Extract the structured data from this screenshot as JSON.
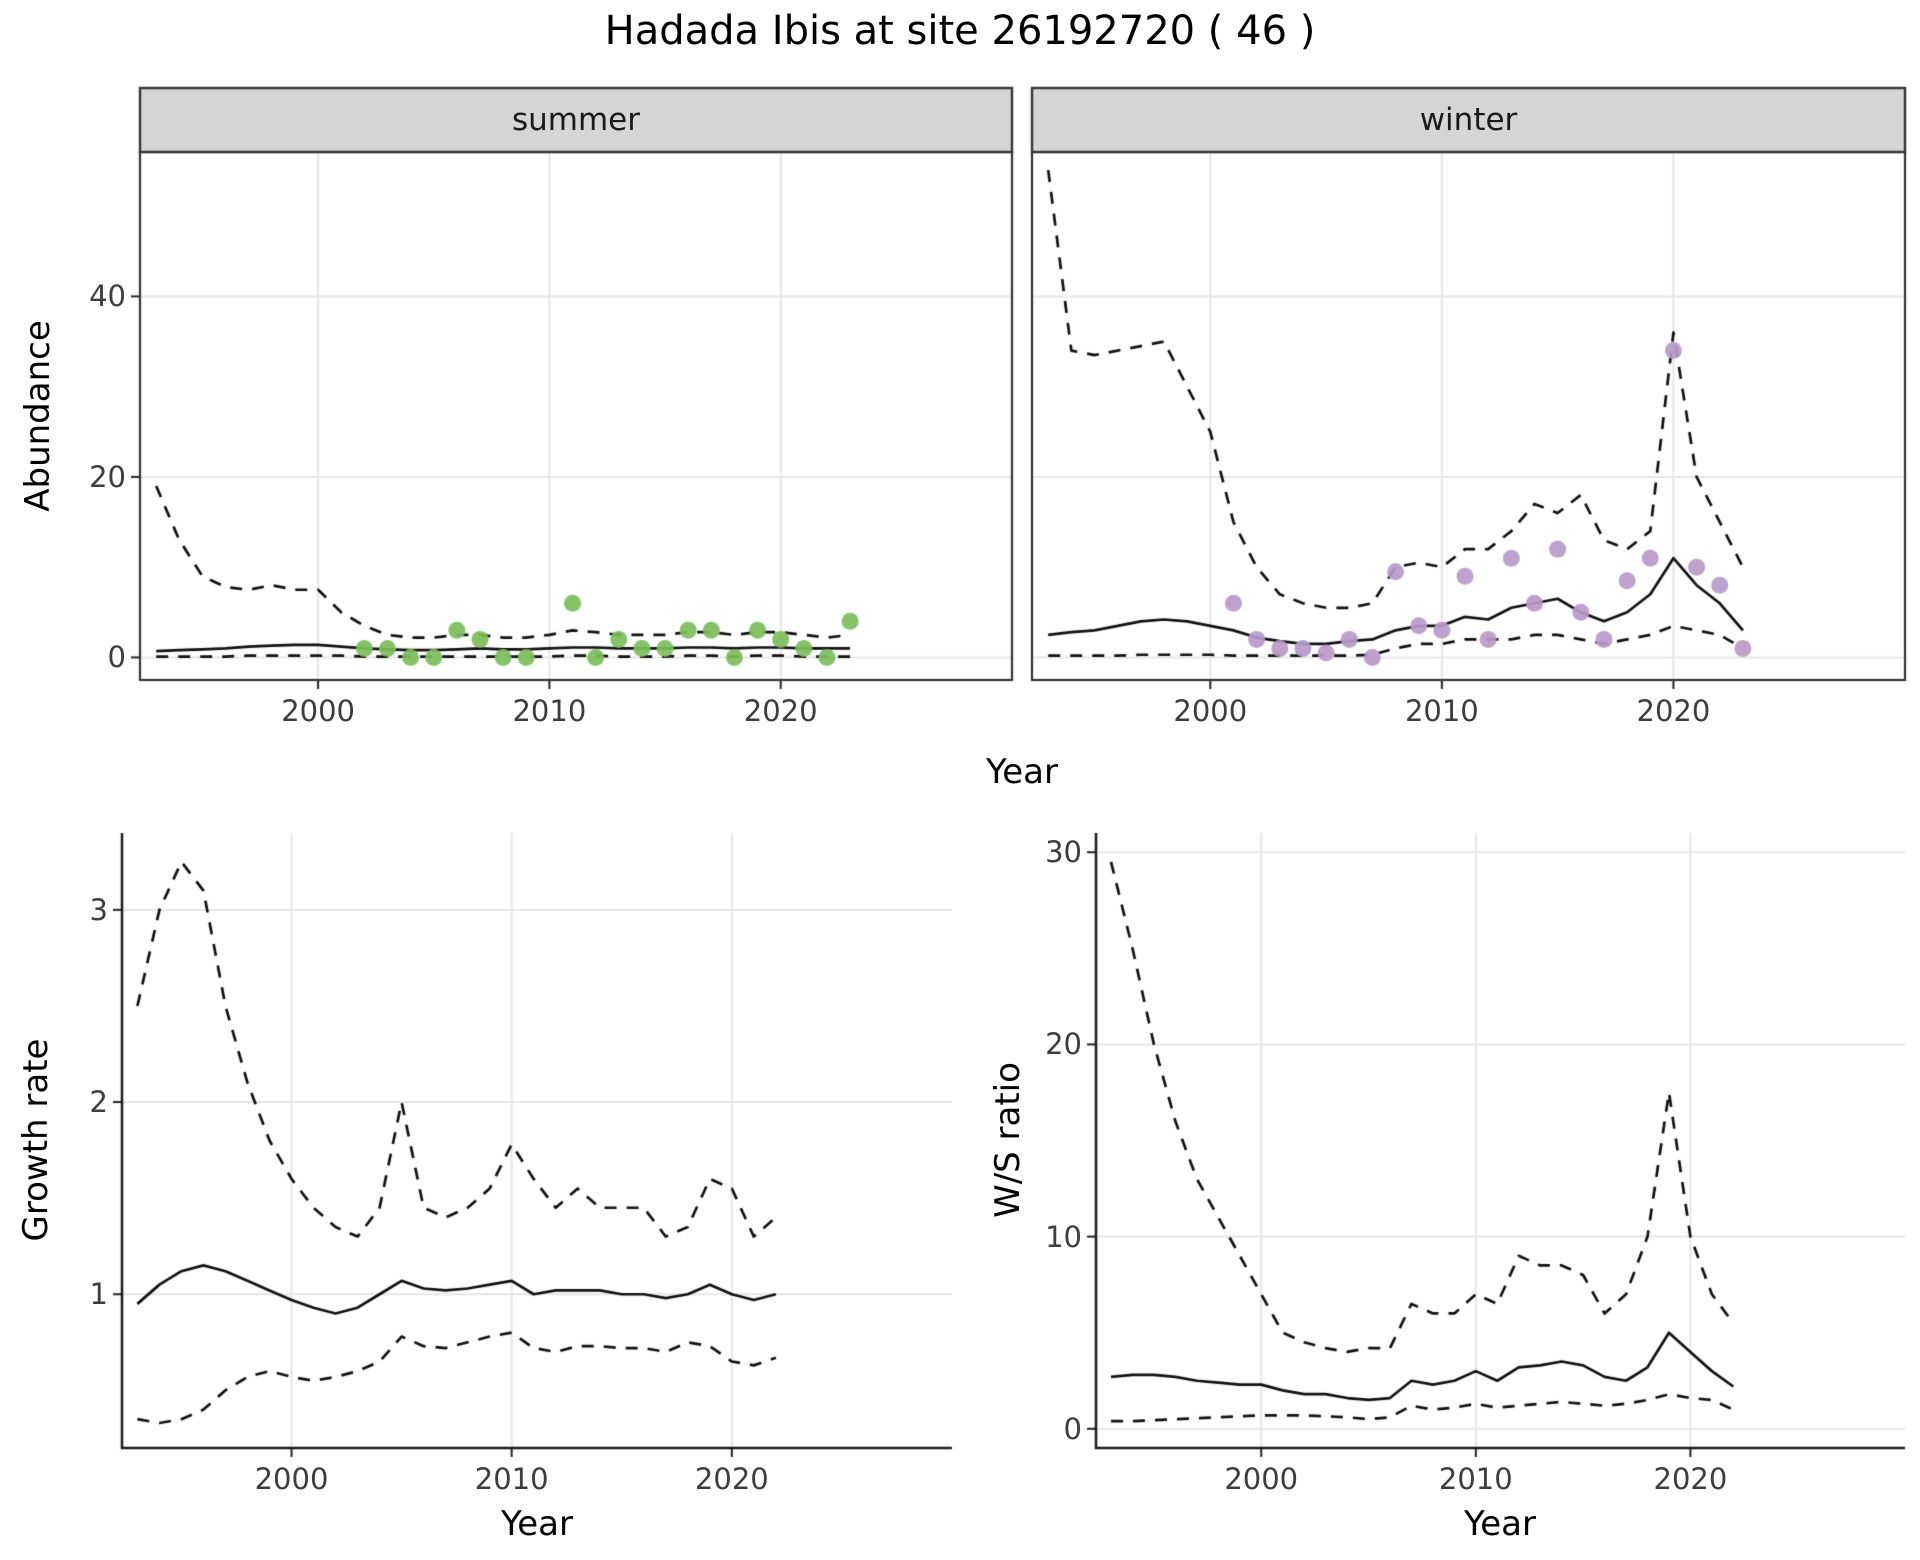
{
  "title": "Hadada Ibis at site 26192720 ( 46 )",
  "chart_data": [
    {
      "id": "abundance-summer",
      "type": "line",
      "facet_label": "summer",
      "xlabel": "Year",
      "ylabel": "Abundance",
      "xlim": [
        1992.3,
        2030
      ],
      "ylim": [
        -2.5,
        56
      ],
      "xticks": [
        2000,
        2010,
        2020
      ],
      "yticks": [
        0,
        20,
        40
      ],
      "grid": true,
      "x": [
        1993,
        1994,
        1995,
        1996,
        1997,
        1998,
        1999,
        2000,
        2001,
        2002,
        2003,
        2004,
        2005,
        2006,
        2007,
        2008,
        2009,
        2010,
        2011,
        2012,
        2013,
        2014,
        2015,
        2016,
        2017,
        2018,
        2019,
        2020,
        2021,
        2022,
        2023
      ],
      "series": [
        {
          "name": "median",
          "style": "solid",
          "values": [
            0.7,
            0.8,
            0.9,
            1.0,
            1.2,
            1.3,
            1.4,
            1.4,
            1.2,
            1.0,
            0.9,
            0.8,
            0.8,
            0.9,
            1.0,
            0.9,
            0.9,
            1.0,
            1.1,
            1.1,
            1.0,
            1.0,
            1.0,
            1.1,
            1.1,
            1.0,
            1.1,
            1.1,
            1.0,
            1.0,
            1.0
          ]
        },
        {
          "name": "upper-ci",
          "style": "dashed",
          "values": [
            19,
            13,
            9,
            7.8,
            7.5,
            8,
            7.5,
            7.5,
            5,
            3.5,
            2.5,
            2.2,
            2.2,
            2.5,
            2.5,
            2.2,
            2.2,
            2.5,
            3,
            2.8,
            2.5,
            2.5,
            2.5,
            2.8,
            2.8,
            2.5,
            2.8,
            2.8,
            2.5,
            2.2,
            2.5
          ]
        },
        {
          "name": "lower-ci",
          "style": "dashed",
          "values": [
            0.1,
            0.1,
            0.1,
            0.1,
            0.2,
            0.2,
            0.2,
            0.2,
            0.2,
            0.1,
            0.1,
            0.1,
            0.1,
            0.1,
            0.1,
            0.1,
            0.1,
            0.1,
            0.2,
            0.2,
            0.1,
            0.1,
            0.1,
            0.2,
            0.2,
            0.1,
            0.2,
            0.2,
            0.1,
            0.1,
            0.1
          ]
        }
      ],
      "points": {
        "name": "observed-counts-summer",
        "color": "#7cbe5b",
        "x": [
          2002,
          2003,
          2004,
          2005,
          2006,
          2007,
          2008,
          2009,
          2011,
          2012,
          2013,
          2014,
          2015,
          2016,
          2017,
          2018,
          2019,
          2020,
          2021,
          2022,
          2023
        ],
        "y": [
          1,
          1,
          0,
          0,
          3,
          2,
          0,
          0,
          6,
          0,
          2,
          1,
          1,
          3,
          3,
          0,
          3,
          2,
          1,
          0,
          4
        ]
      }
    },
    {
      "id": "abundance-winter",
      "type": "line",
      "facet_label": "winter",
      "xlabel": "Year",
      "ylabel": "Abundance",
      "xlim": [
        1992.3,
        2030
      ],
      "ylim": [
        -2.5,
        56
      ],
      "xticks": [
        2000,
        2010,
        2020
      ],
      "yticks": [
        0,
        20,
        40
      ],
      "grid": true,
      "x": [
        1993,
        1994,
        1995,
        1996,
        1997,
        1998,
        1999,
        2000,
        2001,
        2002,
        2003,
        2004,
        2005,
        2006,
        2007,
        2008,
        2009,
        2010,
        2011,
        2012,
        2013,
        2014,
        2015,
        2016,
        2017,
        2018,
        2019,
        2020,
        2021,
        2022,
        2023
      ],
      "series": [
        {
          "name": "median",
          "style": "solid",
          "values": [
            2.5,
            2.8,
            3.0,
            3.5,
            4.0,
            4.2,
            4.0,
            3.5,
            3.0,
            2.2,
            1.8,
            1.5,
            1.5,
            1.8,
            2.0,
            3.0,
            3.5,
            3.5,
            4.5,
            4.2,
            5.5,
            6.0,
            6.5,
            5.0,
            4.0,
            5.0,
            7.0,
            11.0,
            8.0,
            6.0,
            3.0
          ]
        },
        {
          "name": "upper-ci",
          "style": "dashed",
          "values": [
            54,
            34,
            33.5,
            34,
            34.5,
            35,
            30,
            25,
            15,
            10,
            7,
            6,
            5.5,
            5.5,
            6,
            10,
            10.5,
            10,
            12,
            12,
            14,
            17,
            16,
            18,
            13,
            12,
            14,
            36,
            20,
            15,
            10
          ]
        },
        {
          "name": "lower-ci",
          "style": "dashed",
          "values": [
            0.2,
            0.2,
            0.2,
            0.2,
            0.3,
            0.3,
            0.3,
            0.3,
            0.2,
            0.2,
            0.2,
            0.2,
            0.2,
            0.2,
            0.3,
            1.0,
            1.5,
            1.5,
            2.0,
            2.0,
            2.0,
            2.5,
            2.5,
            2.0,
            1.5,
            2.0,
            2.5,
            3.5,
            3.0,
            2.5,
            1.0
          ]
        }
      ],
      "points": {
        "name": "observed-counts-winter",
        "color": "#b79ac9",
        "x": [
          2001,
          2002,
          2003,
          2004,
          2005,
          2006,
          2007,
          2008,
          2009,
          2010,
          2011,
          2012,
          2013,
          2014,
          2015,
          2016,
          2017,
          2018,
          2019,
          2020,
          2021,
          2022,
          2023
        ],
        "y": [
          6,
          2,
          1,
          1,
          0.5,
          2,
          0,
          9.5,
          3.5,
          3,
          9,
          2,
          11,
          6,
          12,
          5,
          2,
          8.5,
          11,
          34,
          10,
          8,
          1
        ]
      }
    },
    {
      "id": "growth-rate",
      "type": "line",
      "xlabel": "Year",
      "ylabel": "Growth rate",
      "xlim": [
        1992.3,
        2030
      ],
      "ylim": [
        0.2,
        3.4
      ],
      "xticks": [
        2000,
        2010,
        2020
      ],
      "yticks": [
        1,
        2,
        3
      ],
      "grid": true,
      "x": [
        1993,
        1994,
        1995,
        1996,
        1997,
        1998,
        1999,
        2000,
        2001,
        2002,
        2003,
        2004,
        2005,
        2006,
        2007,
        2008,
        2009,
        2010,
        2011,
        2012,
        2013,
        2014,
        2015,
        2016,
        2017,
        2018,
        2019,
        2020,
        2021,
        2022
      ],
      "series": [
        {
          "name": "median",
          "style": "solid",
          "values": [
            0.95,
            1.05,
            1.12,
            1.15,
            1.12,
            1.07,
            1.02,
            0.97,
            0.93,
            0.9,
            0.93,
            1.0,
            1.07,
            1.03,
            1.02,
            1.03,
            1.05,
            1.07,
            1.0,
            1.02,
            1.02,
            1.02,
            1.0,
            1.0,
            0.98,
            1.0,
            1.05,
            1.0,
            0.97,
            1.0
          ]
        },
        {
          "name": "upper-ci",
          "style": "dashed",
          "values": [
            2.5,
            3.0,
            3.25,
            3.1,
            2.5,
            2.1,
            1.8,
            1.6,
            1.45,
            1.35,
            1.3,
            1.45,
            2.0,
            1.45,
            1.4,
            1.45,
            1.55,
            1.78,
            1.6,
            1.45,
            1.55,
            1.45,
            1.45,
            1.45,
            1.3,
            1.35,
            1.6,
            1.55,
            1.3,
            1.4
          ]
        },
        {
          "name": "lower-ci",
          "style": "dashed",
          "values": [
            0.35,
            0.33,
            0.35,
            0.4,
            0.5,
            0.57,
            0.6,
            0.57,
            0.55,
            0.57,
            0.6,
            0.65,
            0.78,
            0.73,
            0.72,
            0.75,
            0.78,
            0.8,
            0.72,
            0.7,
            0.73,
            0.73,
            0.72,
            0.72,
            0.7,
            0.75,
            0.73,
            0.65,
            0.63,
            0.67
          ]
        }
      ]
    },
    {
      "id": "ws-ratio",
      "type": "line",
      "xlabel": "Year",
      "ylabel": "W/S ratio",
      "xlim": [
        1992.3,
        2030
      ],
      "ylim": [
        -1,
        31
      ],
      "xticks": [
        2000,
        2010,
        2020
      ],
      "yticks": [
        0,
        10,
        20,
        30
      ],
      "grid": true,
      "x": [
        1993,
        1994,
        1995,
        1996,
        1997,
        1998,
        1999,
        2000,
        2001,
        2002,
        2003,
        2004,
        2005,
        2006,
        2007,
        2008,
        2009,
        2010,
        2011,
        2012,
        2013,
        2014,
        2015,
        2016,
        2017,
        2018,
        2019,
        2020,
        2021,
        2022
      ],
      "series": [
        {
          "name": "median",
          "style": "solid",
          "values": [
            2.7,
            2.8,
            2.8,
            2.7,
            2.5,
            2.4,
            2.3,
            2.3,
            2.0,
            1.8,
            1.8,
            1.6,
            1.5,
            1.6,
            2.5,
            2.3,
            2.5,
            3.0,
            2.5,
            3.2,
            3.3,
            3.5,
            3.3,
            2.7,
            2.5,
            3.2,
            5.0,
            4.0,
            3.0,
            2.2
          ]
        },
        {
          "name": "upper-ci",
          "style": "dashed",
          "values": [
            29.5,
            25,
            20,
            16,
            13,
            11,
            9,
            7,
            5,
            4.5,
            4.2,
            4.0,
            4.2,
            4.2,
            6.5,
            6.0,
            6.0,
            7.0,
            6.5,
            9.0,
            8.5,
            8.5,
            8.0,
            6.0,
            7.0,
            10.0,
            17.5,
            10.0,
            7.0,
            5.5
          ]
        },
        {
          "name": "lower-ci",
          "style": "dashed",
          "values": [
            0.4,
            0.4,
            0.45,
            0.5,
            0.55,
            0.6,
            0.65,
            0.7,
            0.7,
            0.7,
            0.65,
            0.6,
            0.5,
            0.6,
            1.2,
            1.0,
            1.1,
            1.3,
            1.1,
            1.2,
            1.3,
            1.4,
            1.3,
            1.2,
            1.3,
            1.5,
            1.8,
            1.6,
            1.5,
            1.0
          ]
        }
      ]
    }
  ],
  "colors": {
    "line": "#111111",
    "grid": "#e6e6e6",
    "strip_fill": "#d5d5d5",
    "summer_points": "#7cbe5b",
    "winter_points": "#b79ac9"
  }
}
